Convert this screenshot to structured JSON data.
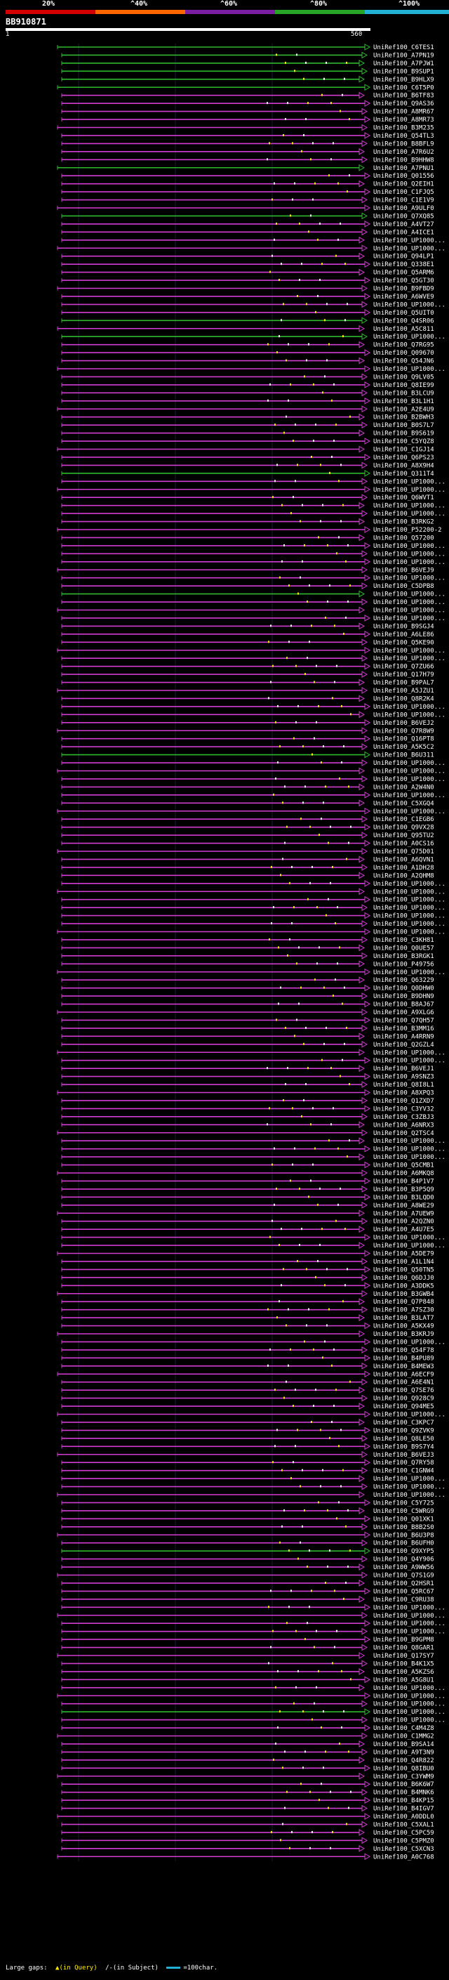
{
  "scale": {
    "labels": [
      "20%",
      "^40%",
      "^60%",
      "^80%",
      "^100%"
    ],
    "colors": [
      "#d40000",
      "#ff6600",
      "#7a1fa2",
      "#27a327",
      "#22b0d5"
    ]
  },
  "query": {
    "id": "BB910871",
    "start": "1",
    "end": "560"
  },
  "colors": {
    "identity_low": "#d13cd1",
    "identity_high": "#2eb82e",
    "gap_query": "#ffef00",
    "gap_subject": "#ffffff",
    "background": "#000000"
  },
  "hits": [
    {
      "label": "UniRef100_C6TES1",
      "identity": "high"
    },
    {
      "label": "UniRef100_A7PN19",
      "identity": "high"
    },
    {
      "label": "UniRef100_A7PJW1",
      "identity": "high"
    },
    {
      "label": "UniRef100_B9SUP1",
      "identity": "high"
    },
    {
      "label": "UniRef100_B9HLX9",
      "identity": "high"
    },
    {
      "label": "UniRef100_C6T5P0",
      "identity": "high"
    },
    {
      "label": "UniRef100_B6TF83",
      "identity": "low"
    },
    {
      "label": "UniRef100_Q9AS36",
      "identity": "low"
    },
    {
      "label": "UniRef100_A8MR67",
      "identity": "low"
    },
    {
      "label": "UniRef100_A8MR73",
      "identity": "low"
    },
    {
      "label": "UniRef100_B3M235",
      "identity": "low"
    },
    {
      "label": "UniRef100_Q54TL3",
      "identity": "low"
    },
    {
      "label": "UniRef100_B8BFL9",
      "identity": "low"
    },
    {
      "label": "UniRef100_A7R6U2",
      "identity": "low"
    },
    {
      "label": "UniRef100_B9HHW8",
      "identity": "low"
    },
    {
      "label": "UniRef100_A7PNU1",
      "identity": "high"
    },
    {
      "label": "UniRef100_Q01556",
      "identity": "low"
    },
    {
      "label": "UniRef100_Q2EIH1",
      "identity": "low"
    },
    {
      "label": "UniRef100_C1FJQ5",
      "identity": "low"
    },
    {
      "label": "UniRef100_C1E1V9",
      "identity": "low"
    },
    {
      "label": "UniRef100_A9ULF0",
      "identity": "low"
    },
    {
      "label": "UniRef100_Q7XQ85",
      "identity": "high"
    },
    {
      "label": "UniRef100_A4VT27",
      "identity": "low"
    },
    {
      "label": "UniRef100_A4ICE1",
      "identity": "low"
    },
    {
      "label": "UniRef100_UP1000...",
      "identity": "low"
    },
    {
      "label": "UniRef100_UP1000...",
      "identity": "low"
    },
    {
      "label": "UniRef100_Q94LP1",
      "identity": "low"
    },
    {
      "label": "UniRef100_Q338E1",
      "identity": "low"
    },
    {
      "label": "UniRef100_Q5ARM6",
      "identity": "low"
    },
    {
      "label": "UniRef100_Q5GT30",
      "identity": "low"
    },
    {
      "label": "UniRef100_B9FBD9",
      "identity": "low"
    },
    {
      "label": "UniRef100_A6WVE9",
      "identity": "low"
    },
    {
      "label": "UniRef100_UP1000...",
      "identity": "low"
    },
    {
      "label": "UniRef100_Q5UIT0",
      "identity": "low"
    },
    {
      "label": "UniRef100_Q4SR06",
      "identity": "high"
    },
    {
      "label": "UniRef100_A5C811",
      "identity": "low"
    },
    {
      "label": "UniRef100_UP1000...",
      "identity": "high"
    },
    {
      "label": "UniRef100_Q7RG95",
      "identity": "low"
    },
    {
      "label": "UniRef100_Q09670",
      "identity": "low"
    },
    {
      "label": "UniRef100_Q54JN6",
      "identity": "low"
    },
    {
      "label": "UniRef100_UP1000...",
      "identity": "low"
    },
    {
      "label": "UniRef100_Q9LV05",
      "identity": "low"
    },
    {
      "label": "UniRef100_Q8IE99",
      "identity": "low"
    },
    {
      "label": "UniRef100_B3LCU9",
      "identity": "low"
    },
    {
      "label": "UniRef100_B3L1H1",
      "identity": "low"
    },
    {
      "label": "UniRef100_A2E4U9",
      "identity": "low"
    },
    {
      "label": "UniRef100_B2BWH3",
      "identity": "low"
    },
    {
      "label": "UniRef100_B0S7L7",
      "identity": "low"
    },
    {
      "label": "UniRef100_B9S619",
      "identity": "low"
    },
    {
      "label": "UniRef100_C5YQZ8",
      "identity": "low"
    },
    {
      "label": "UniRef100_C1GJ14",
      "identity": "low"
    },
    {
      "label": "UniRef100_Q6PS23",
      "identity": "low"
    },
    {
      "label": "UniRef100_A8X9H4",
      "identity": "low"
    },
    {
      "label": "UniRef100_Q311T4",
      "identity": "high"
    },
    {
      "label": "UniRef100_UP1000...",
      "identity": "low"
    },
    {
      "label": "UniRef100_UP1000...",
      "identity": "low"
    },
    {
      "label": "UniRef100_Q6WVT1",
      "identity": "low"
    },
    {
      "label": "UniRef100_UP1000...",
      "identity": "low"
    },
    {
      "label": "UniRef100_UP1000...",
      "identity": "low"
    },
    {
      "label": "UniRef100_B3RKG2",
      "identity": "low"
    },
    {
      "label": "UniRef100_P52200-2",
      "identity": "low"
    },
    {
      "label": "UniRef100_Q57200",
      "identity": "low"
    },
    {
      "label": "UniRef100_UP1000...",
      "identity": "low"
    },
    {
      "label": "UniRef100_UP1000...",
      "identity": "low"
    },
    {
      "label": "UniRef100_UP1000...",
      "identity": "low"
    },
    {
      "label": "UniRef100_B6VEJ9",
      "identity": "low"
    },
    {
      "label": "UniRef100_UP1000...",
      "identity": "low"
    },
    {
      "label": "UniRef100_C5DPB8",
      "identity": "low"
    },
    {
      "label": "UniRef100_UP1000...",
      "identity": "high"
    },
    {
      "label": "UniRef100_UP1000...",
      "identity": "low"
    },
    {
      "label": "UniRef100_UP1000...",
      "identity": "low"
    },
    {
      "label": "UniRef100_UP1000...",
      "identity": "low"
    },
    {
      "label": "UniRef100_B9SGJ4",
      "identity": "low"
    },
    {
      "label": "UniRef100_A6LE86",
      "identity": "low"
    },
    {
      "label": "UniRef100_Q5KE90",
      "identity": "low"
    },
    {
      "label": "UniRef100_UP1000...",
      "identity": "low"
    },
    {
      "label": "UniRef100_UP1000...",
      "identity": "low"
    },
    {
      "label": "UniRef100_Q7ZU66",
      "identity": "low"
    },
    {
      "label": "UniRef100_Q17H79",
      "identity": "low"
    },
    {
      "label": "UniRef100_B9PAL7",
      "identity": "low"
    },
    {
      "label": "UniRef100_A5JZU1",
      "identity": "low"
    },
    {
      "label": "UniRef100_Q8R2K4",
      "identity": "low"
    },
    {
      "label": "UniRef100_UP1000...",
      "identity": "low"
    },
    {
      "label": "UniRef100_UP1000...",
      "identity": "low"
    },
    {
      "label": "UniRef100_B6VEJ2",
      "identity": "low"
    },
    {
      "label": "UniRef100_Q7R8W9",
      "identity": "low"
    },
    {
      "label": "UniRef100_Q16PT8",
      "identity": "low"
    },
    {
      "label": "UniRef100_A5K5C2",
      "identity": "low"
    },
    {
      "label": "UniRef100_B6U311",
      "identity": "high"
    },
    {
      "label": "UniRef100_UP1000...",
      "identity": "low"
    },
    {
      "label": "UniRef100_UP1000...",
      "identity": "low"
    },
    {
      "label": "UniRef100_UP1000...",
      "identity": "low"
    },
    {
      "label": "UniRef100_A2W4N0",
      "identity": "low"
    },
    {
      "label": "UniRef100_UP1000...",
      "identity": "low"
    },
    {
      "label": "UniRef100_C5XGQ4",
      "identity": "low"
    },
    {
      "label": "UniRef100_UP1000...",
      "identity": "low"
    },
    {
      "label": "UniRef100_C1EGB6",
      "identity": "low"
    },
    {
      "label": "UniRef100_Q9VX28",
      "identity": "low"
    },
    {
      "label": "UniRef100_Q95TU2",
      "identity": "low"
    },
    {
      "label": "UniRef100_A0CS16",
      "identity": "low"
    },
    {
      "label": "UniRef100_Q75D01",
      "identity": "low"
    },
    {
      "label": "UniRef100_A6QVN1",
      "identity": "low"
    },
    {
      "label": "UniRef100_A1DH28",
      "identity": "low"
    },
    {
      "label": "UniRef100_A2QHM8",
      "identity": "low"
    },
    {
      "label": "UniRef100_UP1000...",
      "identity": "low"
    },
    {
      "label": "UniRef100_UP1000...",
      "identity": "low"
    },
    {
      "label": "UniRef100_UP1000...",
      "identity": "low"
    },
    {
      "label": "UniRef100_UP1000...",
      "identity": "low"
    },
    {
      "label": "UniRef100_UP1000...",
      "identity": "low"
    },
    {
      "label": "UniRef100_UP1000...",
      "identity": "low"
    },
    {
      "label": "UniRef100_UP1000...",
      "identity": "low"
    },
    {
      "label": "UniRef100_C3KH81",
      "identity": "low"
    },
    {
      "label": "UniRef100_Q0UE57",
      "identity": "low"
    },
    {
      "label": "UniRef100_B3RGK1",
      "identity": "low"
    },
    {
      "label": "UniRef100_P49756",
      "identity": "low"
    },
    {
      "label": "UniRef100_UP1000...",
      "identity": "low"
    },
    {
      "label": "UniRef100_Q63229",
      "identity": "low"
    },
    {
      "label": "UniRef100_Q0DHW0",
      "identity": "low"
    },
    {
      "label": "UniRef100_B9DHN9",
      "identity": "low"
    },
    {
      "label": "UniRef100_B8AJ67",
      "identity": "low"
    },
    {
      "label": "UniRef100_A9XLG6",
      "identity": "low"
    },
    {
      "label": "UniRef100_Q7QH57",
      "identity": "low"
    },
    {
      "label": "UniRef100_B3MM16",
      "identity": "low"
    },
    {
      "label": "UniRef100_A4RRN9",
      "identity": "low"
    },
    {
      "label": "UniRef100_Q2GZL4",
      "identity": "low"
    },
    {
      "label": "UniRef100_UP1000...",
      "identity": "low"
    },
    {
      "label": "UniRef100_UP1000...",
      "identity": "low"
    },
    {
      "label": "UniRef100_B6VEJ1",
      "identity": "low"
    },
    {
      "label": "UniRef100_A9SNZ3",
      "identity": "low"
    },
    {
      "label": "UniRef100_Q8I8L1",
      "identity": "low"
    },
    {
      "label": "UniRef100_A8XPQ3",
      "identity": "low"
    },
    {
      "label": "UniRef100_Q1ZXD7",
      "identity": "low"
    },
    {
      "label": "UniRef100_C3YV32",
      "identity": "low"
    },
    {
      "label": "UniRef100_C3ZBJ3",
      "identity": "low"
    },
    {
      "label": "UniRef100_A6NRX3",
      "identity": "low"
    },
    {
      "label": "UniRef100_Q2TSC4",
      "identity": "low"
    },
    {
      "label": "UniRef100_UP1000...",
      "identity": "low"
    },
    {
      "label": "UniRef100_UP1000...",
      "identity": "low"
    },
    {
      "label": "UniRef100_UP1000...",
      "identity": "low"
    },
    {
      "label": "UniRef100_Q5CMB1",
      "identity": "low"
    },
    {
      "label": "UniRef100_A6MKQ8",
      "identity": "low"
    },
    {
      "label": "UniRef100_B4P1V7",
      "identity": "low"
    },
    {
      "label": "UniRef100_B3P5Q9",
      "identity": "low"
    },
    {
      "label": "UniRef100_B3LQD0",
      "identity": "low"
    },
    {
      "label": "UniRef100_A8WE29",
      "identity": "low"
    },
    {
      "label": "UniRef100_A7UEW9",
      "identity": "low"
    },
    {
      "label": "UniRef100_A2QZN0",
      "identity": "low"
    },
    {
      "label": "UniRef100_A4U7E5",
      "identity": "low"
    },
    {
      "label": "UniRef100_UP1000...",
      "identity": "low"
    },
    {
      "label": "UniRef100_UP1000...",
      "identity": "low"
    },
    {
      "label": "UniRef100_A5DE79",
      "identity": "low"
    },
    {
      "label": "UniRef100_A1L1N4",
      "identity": "low"
    },
    {
      "label": "UniRef100_Q50TN5",
      "identity": "low"
    },
    {
      "label": "UniRef100_Q6DJJ0",
      "identity": "low"
    },
    {
      "label": "UniRef100_A3DDK5",
      "identity": "low"
    },
    {
      "label": "UniRef100_B3GWB4",
      "identity": "low"
    },
    {
      "label": "UniRef100_Q7P848",
      "identity": "low"
    },
    {
      "label": "UniRef100_A7SZ30",
      "identity": "low"
    },
    {
      "label": "UniRef100_B3LAT7",
      "identity": "low"
    },
    {
      "label": "UniRef100_A5KX49",
      "identity": "low"
    },
    {
      "label": "UniRef100_B3KRJ9",
      "identity": "low"
    },
    {
      "label": "UniRef100_UP1000...",
      "identity": "low"
    },
    {
      "label": "UniRef100_Q54F78",
      "identity": "low"
    },
    {
      "label": "UniRef100_B4PU89",
      "identity": "low"
    },
    {
      "label": "UniRef100_B4MEW3",
      "identity": "low"
    },
    {
      "label": "UniRef100_A6ECF9",
      "identity": "low"
    },
    {
      "label": "UniRef100_A6E4N1",
      "identity": "low"
    },
    {
      "label": "UniRef100_Q7SE76",
      "identity": "low"
    },
    {
      "label": "UniRef100_Q928C9",
      "identity": "low"
    },
    {
      "label": "UniRef100_Q94ME5",
      "identity": "low"
    },
    {
      "label": "UniRef100_UP1000...",
      "identity": "low"
    },
    {
      "label": "UniRef100_C3KPC7",
      "identity": "low"
    },
    {
      "label": "UniRef100_Q9ZVK9",
      "identity": "low"
    },
    {
      "label": "UniRef100_Q8LE50",
      "identity": "low"
    },
    {
      "label": "UniRef100_B9S7Y4",
      "identity": "low"
    },
    {
      "label": "UniRef100_B6VEJ3",
      "identity": "low"
    },
    {
      "label": "UniRef100_Q7RY58",
      "identity": "low"
    },
    {
      "label": "UniRef100_C1GNW4",
      "identity": "low"
    },
    {
      "label": "UniRef100_UP1000...",
      "identity": "low"
    },
    {
      "label": "UniRef100_UP1000...",
      "identity": "low"
    },
    {
      "label": "UniRef100_UP1000...",
      "identity": "low"
    },
    {
      "label": "UniRef100_C5Y725",
      "identity": "low"
    },
    {
      "label": "UniRef100_C5WRG9",
      "identity": "low"
    },
    {
      "label": "UniRef100_Q01XK1",
      "identity": "low"
    },
    {
      "label": "UniRef100_B8B2S0",
      "identity": "low"
    },
    {
      "label": "UniRef100_B6U3P8",
      "identity": "low"
    },
    {
      "label": "UniRef100_B6UFH0",
      "identity": "low"
    },
    {
      "label": "UniRef100_Q9XYP5",
      "identity": "high"
    },
    {
      "label": "UniRef100_Q4Y906",
      "identity": "low"
    },
    {
      "label": "UniRef100_A9WW56",
      "identity": "low"
    },
    {
      "label": "UniRef100_Q7S1G9",
      "identity": "low"
    },
    {
      "label": "UniRef100_Q2HSR1",
      "identity": "low"
    },
    {
      "label": "UniRef100_Q5RC67",
      "identity": "low"
    },
    {
      "label": "UniRef100_C9RU38",
      "identity": "low"
    },
    {
      "label": "UniRef100_UP1000...",
      "identity": "low"
    },
    {
      "label": "UniRef100_UP1000...",
      "identity": "low"
    },
    {
      "label": "UniRef100_UP1000...",
      "identity": "low"
    },
    {
      "label": "UniRef100_UP1000...",
      "identity": "low"
    },
    {
      "label": "UniRef100_B9GPM8",
      "identity": "low"
    },
    {
      "label": "UniRef100_Q8GAR1",
      "identity": "low"
    },
    {
      "label": "UniRef100_Q17SY7",
      "identity": "low"
    },
    {
      "label": "UniRef100_B4K1X5",
      "identity": "low"
    },
    {
      "label": "UniRef100_A5KZS6",
      "identity": "low"
    },
    {
      "label": "UniRef100_A5G8U1",
      "identity": "low"
    },
    {
      "label": "UniRef100_UP1000...",
      "identity": "low"
    },
    {
      "label": "UniRef100_UP1000...",
      "identity": "low"
    },
    {
      "label": "UniRef100_UP1000...",
      "identity": "low"
    },
    {
      "label": "UniRef100_UP1000...",
      "identity": "high"
    },
    {
      "label": "UniRef100_UP1000...",
      "identity": "low"
    },
    {
      "label": "UniRef100_C4M4Z8",
      "identity": "low"
    },
    {
      "label": "UniRef100_C1MMG2",
      "identity": "low"
    },
    {
      "label": "UniRef100_B9SA14",
      "identity": "low"
    },
    {
      "label": "UniRef100_A9T3N9",
      "identity": "low"
    },
    {
      "label": "UniRef100_Q4R822",
      "identity": "low"
    },
    {
      "label": "UniRef100_Q8IBU0",
      "identity": "low"
    },
    {
      "label": "UniRef100_C3YWM9",
      "identity": "low"
    },
    {
      "label": "UniRef100_B6K6W7",
      "identity": "low"
    },
    {
      "label": "UniRef100_B4MNK6",
      "identity": "low"
    },
    {
      "label": "UniRef100_B4KP15",
      "identity": "low"
    },
    {
      "label": "UniRef100_B4IGV7",
      "identity": "low"
    },
    {
      "label": "UniRef100_A0DDL0",
      "identity": "low"
    },
    {
      "label": "UniRef100_C5XAL1",
      "identity": "low"
    },
    {
      "label": "UniRef100_C5PC59",
      "identity": "low"
    },
    {
      "label": "UniRef100_C5PMZ0",
      "identity": "low"
    },
    {
      "label": "UniRef100_C5XCN3",
      "identity": "low"
    },
    {
      "label": "UniRef100_A0C768",
      "identity": "low"
    }
  ],
  "legend": {
    "large_gaps": "Large gaps:",
    "query_gap": "▲(in Query)",
    "subject_gap": "/-(in Subject)",
    "scale": "=100char."
  }
}
